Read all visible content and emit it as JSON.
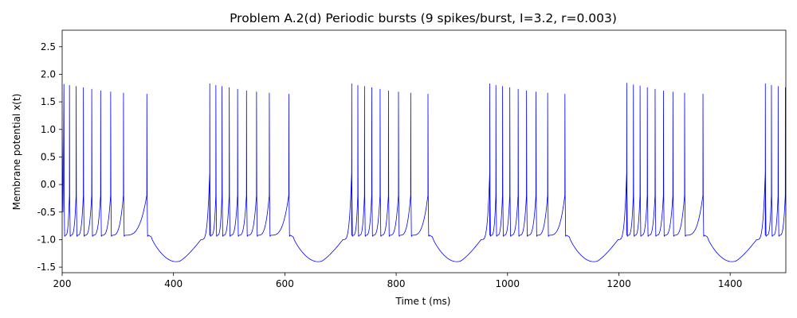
{
  "chart_data": {
    "type": "line",
    "title": "Problem A.2(d) Periodic bursts (9 spikes/burst, I=3.2, r=0.003)",
    "xlabel": "Time t (ms)",
    "ylabel": "Membrane potential x(t)",
    "xlim": [
      200,
      1500
    ],
    "ylim": [
      -1.6,
      2.8
    ],
    "xticks": [
      200,
      400,
      600,
      800,
      1000,
      1200,
      1400
    ],
    "yticks": [
      -1.5,
      -1.0,
      -0.5,
      0.0,
      0.5,
      1.0,
      1.5,
      2.0,
      2.5
    ],
    "grid": false,
    "line_color": "#0000ff",
    "bursts": [
      {
        "spike_times": [
          203,
          213,
          225,
          238,
          253,
          269,
          287,
          310,
          352
        ],
        "peaks": [
          1.82,
          1.8,
          1.78,
          1.76,
          1.73,
          1.7,
          1.68,
          1.66,
          1.64
        ],
        "trough": -1.38
      },
      {
        "spike_times": [
          465,
          476,
          487,
          500,
          515,
          531,
          549,
          572,
          607
        ],
        "peaks": [
          1.83,
          1.8,
          1.78,
          1.76,
          1.73,
          1.7,
          1.68,
          1.66,
          1.64
        ],
        "trough": -1.4
      },
      {
        "spike_times": [
          720,
          731,
          743,
          756,
          771,
          786,
          804,
          826,
          857
        ],
        "peaks": [
          1.83,
          1.8,
          1.78,
          1.76,
          1.73,
          1.7,
          1.68,
          1.66,
          1.64
        ],
        "trough": -1.4
      },
      {
        "spike_times": [
          968,
          979,
          991,
          1004,
          1019,
          1034,
          1051,
          1072,
          1103
        ],
        "peaks": [
          1.83,
          1.8,
          1.78,
          1.76,
          1.73,
          1.7,
          1.68,
          1.66,
          1.64
        ],
        "trough": -1.4
      },
      {
        "spike_times": [
          1214,
          1226,
          1238,
          1251,
          1265,
          1280,
          1297,
          1318,
          1351
        ],
        "peaks": [
          1.84,
          1.81,
          1.79,
          1.76,
          1.73,
          1.7,
          1.68,
          1.66,
          1.64
        ],
        "trough": -1.4
      },
      {
        "spike_times": [
          1463,
          1474,
          1486,
          1499
        ],
        "peaks": [
          1.83,
          1.8,
          1.78,
          1.76
        ],
        "trough": -1.4
      }
    ],
    "reset_level": -0.92,
    "plateau_level": -0.95
  }
}
